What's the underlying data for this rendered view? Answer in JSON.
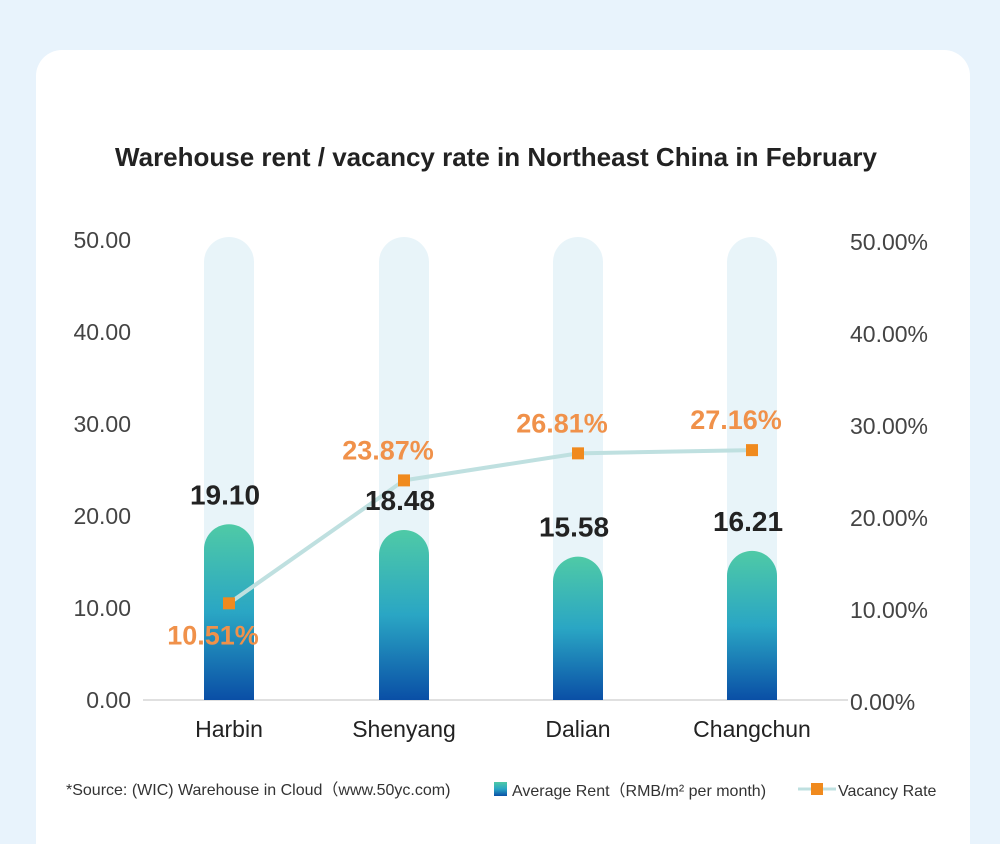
{
  "chart_data": {
    "type": "bar",
    "title": "Warehouse rent / vacancy rate in Northeast China in February",
    "categories": [
      "Harbin",
      "Shenyang",
      "Dalian",
      "Changchun"
    ],
    "y_left": {
      "ticks": [
        "0.00",
        "10.00",
        "20.00",
        "30.00",
        "40.00",
        "50.00"
      ],
      "ylim": [
        0,
        50
      ]
    },
    "y_right": {
      "ticks": [
        "0.00%",
        "10.00%",
        "20.00%",
        "30.00%",
        "40.00%",
        "50.00%"
      ],
      "ylim": [
        0,
        50
      ]
    },
    "series": [
      {
        "name": "Average Rent（RMB/m² per month)",
        "type": "bar",
        "values": [
          19.1,
          18.48,
          15.58,
          16.21
        ],
        "labels": [
          "19.10",
          "18.48",
          "15.58",
          "16.21"
        ],
        "color_top": "#4fcaa6",
        "color_bottom": "#0a4fa6"
      },
      {
        "name": "Vacancy Rate",
        "type": "line",
        "values": [
          10.51,
          23.87,
          26.81,
          27.16
        ],
        "labels": [
          "10.51%",
          "23.87%",
          "26.81%",
          "27.16%"
        ],
        "line_color": "#bfe0e0",
        "marker_color": "#f08a1e",
        "label_color": "#f0914a"
      }
    ],
    "background_bar_color": "#e8f4f9",
    "grid": false,
    "legend_position": "bottom"
  },
  "footer": {
    "source": "*Source: (WIC) Warehouse in Cloud（www.50yc.com)"
  }
}
